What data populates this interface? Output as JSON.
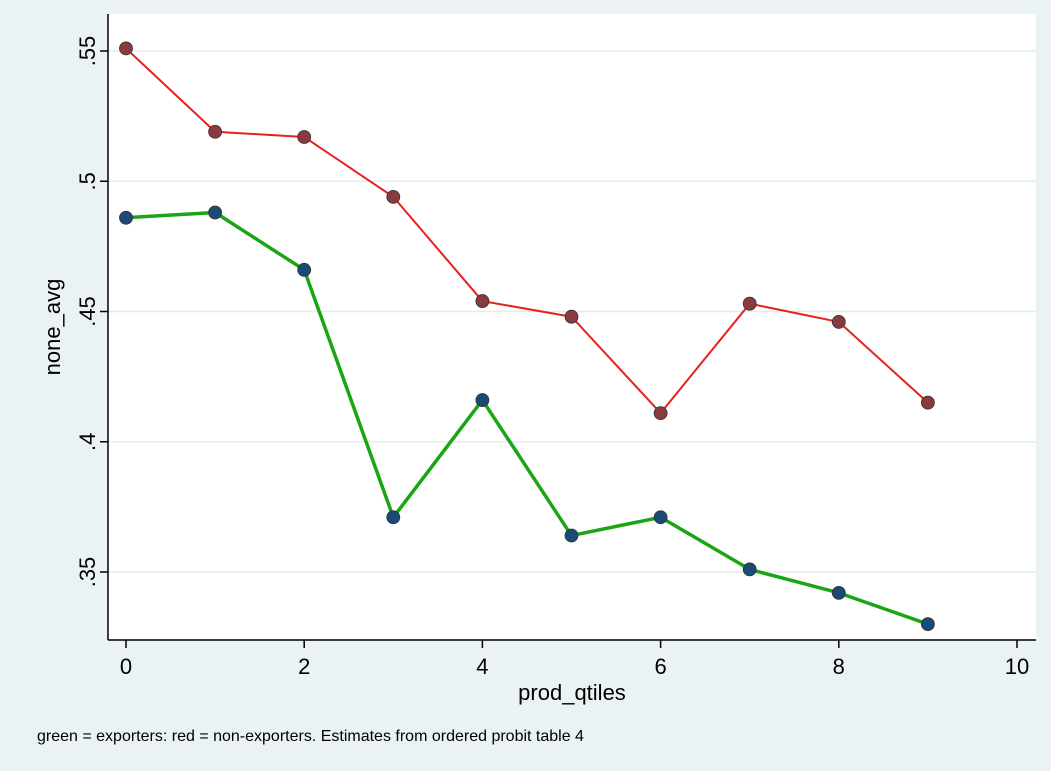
{
  "chart_data": {
    "type": "line",
    "xlabel": "prod_qtiles",
    "ylabel": "none_avg",
    "note": "green = exporters: red = non-exporters. Estimates from ordered probit table 4",
    "xlim": [
      0,
      10
    ],
    "ylim": [
      0.3275,
      0.555
    ],
    "x_ticks": [
      0,
      2,
      4,
      6,
      8,
      10
    ],
    "x_tick_labels": [
      "0",
      "2",
      "4",
      "6",
      "8",
      "10"
    ],
    "y_ticks": [
      0.35,
      0.4,
      0.45,
      0.5,
      0.55
    ],
    "y_tick_labels": [
      ".35",
      ".4",
      ".45",
      ".5",
      ".55"
    ],
    "grid": true,
    "legend": "none",
    "x": [
      0,
      1,
      2,
      3,
      4,
      5,
      6,
      7,
      8,
      9
    ],
    "series": [
      {
        "line_color": "#e8211c",
        "marker_color": "#8b3a40",
        "values": [
          0.551,
          0.519,
          0.517,
          0.494,
          0.454,
          0.448,
          0.411,
          0.453,
          0.446,
          0.415
        ]
      },
      {
        "line_color": "#1aa514",
        "marker_color": "#1b4a75",
        "values": [
          0.486,
          0.488,
          0.466,
          0.371,
          0.416,
          0.364,
          0.371,
          0.351,
          0.342,
          0.33
        ]
      }
    ]
  }
}
